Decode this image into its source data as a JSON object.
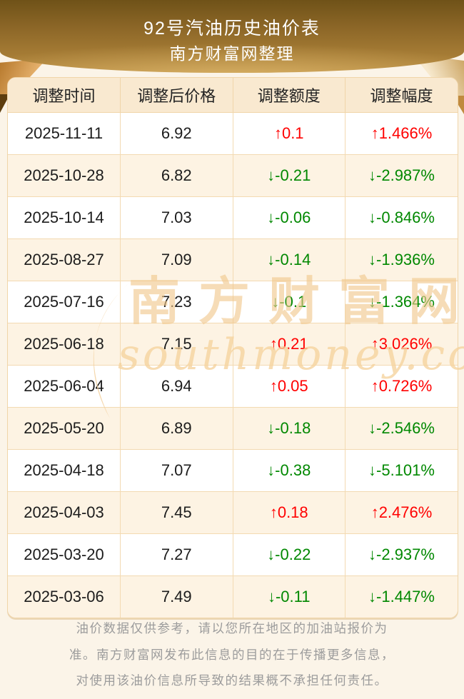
{
  "chart_data": {
    "type": "table",
    "title": "92号汽油历史油价表",
    "subtitle": "南方财富网整理",
    "columns": [
      "调整时间",
      "调整后价格",
      "调整额度",
      "调整幅度"
    ],
    "rows": [
      [
        "2025-11-11",
        "6.92",
        "↑0.1",
        "↑1.466%"
      ],
      [
        "2025-10-28",
        "6.82",
        "↓-0.21",
        "↓-2.987%"
      ],
      [
        "2025-10-14",
        "7.03",
        "↓-0.06",
        "↓-0.846%"
      ],
      [
        "2025-08-27",
        "7.09",
        "↓-0.14",
        "↓-1.936%"
      ],
      [
        "2025-07-16",
        "7.23",
        "↓-0.1",
        "↓-1.364%"
      ],
      [
        "2025-06-18",
        "7.15",
        "↑0.21",
        "↑3.026%"
      ],
      [
        "2025-06-04",
        "6.94",
        "↑0.05",
        "↑0.726%"
      ],
      [
        "2025-05-20",
        "6.89",
        "↓-0.18",
        "↓-2.546%"
      ],
      [
        "2025-04-18",
        "7.07",
        "↓-0.38",
        "↓-5.101%"
      ],
      [
        "2025-04-03",
        "7.45",
        "↑0.18",
        "↑2.476%"
      ],
      [
        "2025-03-20",
        "7.27",
        "↓-0.22",
        "↓-2.937%"
      ],
      [
        "2025-03-06",
        "7.49",
        "↓-0.11",
        "↓-1.447%"
      ]
    ],
    "up_color": "#ff0000",
    "down_color": "#008800",
    "layout_hints": {
      "legend": "none",
      "grid": "on",
      "row_alternating": true
    }
  },
  "watermark": {
    "cn": "南方财富网",
    "en": "southmoney.com"
  },
  "footer": {
    "lines": [
      "油价数据仅供参考，请以您所在地区的加油站报价为",
      "准。南方财富网发布此信息的目的在于传播更多信息，",
      "对使用该油价信息所导致的结果概不承担任何责任。"
    ]
  }
}
